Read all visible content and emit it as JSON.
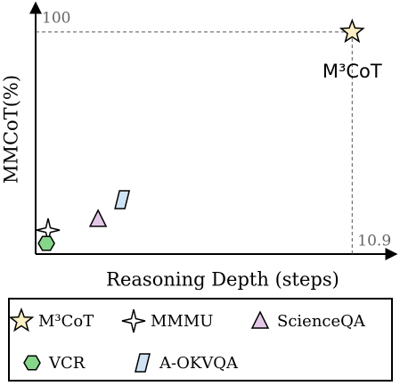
{
  "chart_data": {
    "type": "scatter",
    "x_label": "Reasoning Depth (steps)",
    "y_label": "MMCoT(%)",
    "xlim": [
      0,
      12.4
    ],
    "ylim": [
      0,
      112.4
    ],
    "xticks": [
      10.9
    ],
    "yticks": [
      100
    ],
    "annotation": "M³CoT",
    "series": [
      {
        "name": "M³CoT",
        "marker": "star5",
        "color": "#fdf0c4",
        "x": [
          10.9
        ],
        "values": [
          100
        ]
      },
      {
        "name": "MMMU",
        "marker": "star4",
        "color": "#ffffff",
        "x": [
          0.43
        ],
        "values": [
          10.8
        ]
      },
      {
        "name": "ScienceQA",
        "marker": "triangle",
        "color": "#e4c8e8",
        "x": [
          2.15
        ],
        "values": [
          15.7
        ]
      },
      {
        "name": "VCR",
        "marker": "hexagon",
        "color": "#86d68a",
        "x": [
          0.37
        ],
        "values": [
          4.8
        ]
      },
      {
        "name": "A-OKVQA",
        "marker": "parallelogram",
        "color": "#cfe3f5",
        "x": [
          2.98
        ],
        "values": [
          24.5
        ]
      }
    ]
  }
}
